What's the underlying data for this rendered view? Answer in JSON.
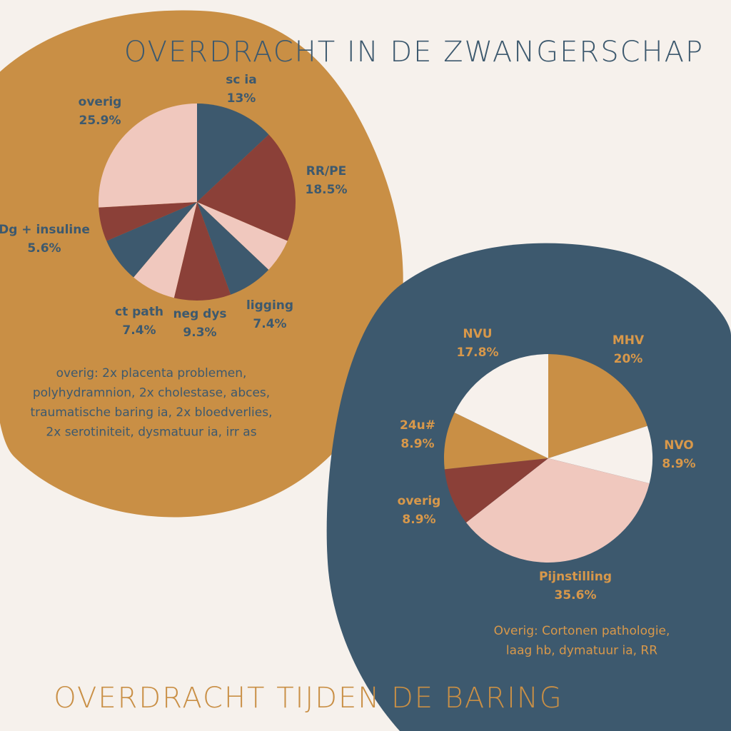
{
  "chart_data": [
    {
      "type": "pie",
      "title": "OVERDRACHT IN DE ZWANGERSCHAP",
      "categories": [
        "sc ia",
        "RR/PE",
        null,
        "ligging",
        "neg dys",
        "ct path",
        null,
        "Dg + insuline",
        "overig"
      ],
      "values": [
        13,
        18.5,
        5.6,
        7.4,
        9.3,
        7.4,
        7.4,
        5.6,
        25.9
      ],
      "value_labels": [
        "13%",
        "18.5%",
        null,
        "7.4%",
        "9.3%",
        "7.4%",
        null,
        "5.6%",
        "25.9%"
      ],
      "colors": [
        "#3D596E",
        "#8B4038",
        "#F0C8BE",
        "#3D596E",
        "#8B4038",
        "#F0C8BE",
        "#3D596E",
        "#8B4038",
        "#F0C8BE"
      ],
      "note": [
        "overig: 2x placenta problemen,",
        "polyhydramnion, 2x cholestase, abces,",
        "traumatische baring ia, 2x bloedverlies,",
        "2x serotiniteit, dysmatuur ia, irr as"
      ]
    },
    {
      "type": "pie",
      "title": "OVERDRACHT TIJDEN DE BARING",
      "categories": [
        "MHV",
        "NVO",
        "Pijnstilling",
        "overig",
        "24u#",
        "NVU"
      ],
      "values": [
        20,
        8.9,
        35.6,
        8.9,
        8.9,
        17.8
      ],
      "value_labels": [
        "20%",
        "8.9%",
        "35.6%",
        "8.9%",
        "8.9%",
        "17.8%"
      ],
      "colors": [
        "#C98F45",
        "#F7F1EC",
        "#F0C8BE",
        "#8B4038",
        "#C98F45",
        "#F7F1EC"
      ],
      "note": [
        "Overig: Cortonen pathologie,",
        "laag hb, dymatuur ia, RR"
      ]
    }
  ]
}
